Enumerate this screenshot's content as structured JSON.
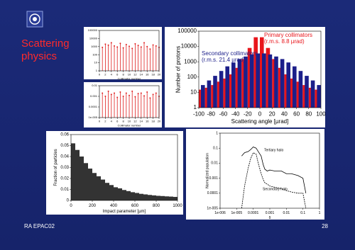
{
  "slide": {
    "heading_lines": [
      "Scattering",
      "physics"
    ],
    "footer": "RA EPAC02",
    "page_number": "28"
  },
  "chart_data": [
    {
      "type": "stem",
      "xlabel": "Collimator number",
      "color": "#e02020",
      "x": [
        1,
        2,
        3,
        4,
        5,
        6,
        7,
        8,
        9,
        10,
        11,
        12,
        13,
        14,
        15,
        16,
        17,
        18,
        19,
        20
      ],
      "values": [
        800,
        2000,
        1500,
        3000,
        1200,
        900,
        2500,
        700,
        1800,
        1100,
        600,
        2200,
        1400,
        900,
        3000,
        1000,
        500,
        1600,
        1200,
        800
      ],
      "xlim": [
        0,
        20
      ],
      "xticks": [
        0,
        2,
        4,
        6,
        8,
        10,
        12,
        14,
        16,
        18,
        20
      ],
      "ylim": [
        1,
        100000
      ],
      "yticks": [
        1,
        10,
        100,
        1000,
        10000,
        100000
      ],
      "ylog": true
    },
    {
      "type": "stem",
      "xlabel": "Collimator number",
      "color": "#e02020",
      "x": [
        1,
        2,
        3,
        4,
        5,
        6,
        7,
        8,
        9,
        10,
        11,
        12,
        13,
        14,
        15,
        16,
        17,
        18,
        19,
        20
      ],
      "values": [
        0.002,
        0.001,
        0.003,
        0.0015,
        0.002,
        0.0008,
        0.0025,
        0.001,
        0.002,
        0.0012,
        0.003,
        0.0009,
        0.0018,
        0.002,
        0.0011,
        0.0025,
        0.0007,
        0.0015,
        0.002,
        0.001
      ],
      "xlim": [
        0,
        20
      ],
      "xticks": [
        0,
        2,
        4,
        6,
        8,
        10,
        12,
        14,
        16,
        18,
        20
      ],
      "ylim": [
        1e-05,
        0.01
      ],
      "yticks": [
        {
          "value": 1e-05,
          "label": "1e-005"
        },
        0.0001,
        0.001,
        0.01
      ],
      "ylog": true
    },
    {
      "type": "histogram",
      "xlabel": "Scattering angle [µrad]",
      "ylabel": "Number of protons",
      "bins": [
        -100,
        -90,
        -80,
        -70,
        -60,
        -50,
        -40,
        -30,
        -20,
        -10,
        0,
        10,
        20,
        30,
        40,
        50,
        60,
        70,
        80,
        90,
        100
      ],
      "series": [
        {
          "name": "Primary collimators",
          "note": "(r.m.s. 8.8 µrad)",
          "color": "#e8151b",
          "values": [
            15,
            20,
            30,
            50,
            80,
            150,
            400,
            1500,
            8000,
            40000,
            40000,
            8000,
            1500,
            400,
            150,
            80,
            50,
            30,
            20,
            15
          ]
        },
        {
          "name": "Secondary collimators",
          "note": "(r.m.s. 21.4 µrad)",
          "color": "#1c1f8a",
          "values": [
            30,
            60,
            120,
            250,
            500,
            900,
            1500,
            2200,
            3000,
            3500,
            3500,
            3000,
            2200,
            1500,
            900,
            500,
            250,
            120,
            60,
            30
          ]
        }
      ],
      "xlim": [
        -100,
        100
      ],
      "xticks": [
        -100,
        -80,
        -60,
        -40,
        -20,
        0,
        20,
        40,
        60,
        80,
        100
      ],
      "ylim": [
        1,
        100000
      ],
      "yticks": [
        1,
        10,
        100,
        1000,
        10000,
        100000
      ],
      "ylog": true
    },
    {
      "type": "histogram",
      "xlabel": "Impact parameter [µm]",
      "ylabel": "Fraction of particles",
      "bins": [
        0,
        40,
        80,
        120,
        160,
        200,
        240,
        280,
        320,
        360,
        400,
        440,
        480,
        520,
        560,
        600,
        640,
        680,
        720,
        760,
        800,
        840,
        880,
        920,
        960,
        1000
      ],
      "series": [
        {
          "color": "#333333",
          "values": [
            0.052,
            0.046,
            0.04,
            0.034,
            0.029,
            0.025,
            0.022,
            0.019,
            0.016,
            0.014,
            0.012,
            0.011,
            0.0095,
            0.0085,
            0.0075,
            0.0068,
            0.006,
            0.0055,
            0.005,
            0.0046,
            0.0042,
            0.004,
            0.0037,
            0.0035,
            0.0032
          ]
        }
      ],
      "xlim": [
        0,
        1000
      ],
      "xticks": [
        0,
        200,
        400,
        600,
        800,
        1000
      ],
      "ylim": [
        0,
        0.06
      ],
      "yticks": [
        0,
        0.01,
        0.02,
        0.03,
        0.04,
        0.05,
        0.06
      ]
    },
    {
      "type": "line",
      "xlabel": "δ",
      "ylabel": "Normalized population",
      "x": [
        2e-05,
        3e-05,
        5e-05,
        7e-05,
        0.0001,
        0.00015,
        0.0002,
        0.0003,
        0.0004,
        0.0005,
        0.0007,
        0.001,
        0.002,
        0.005,
        0.01,
        0.02,
        0.05,
        0.1,
        0.15
      ],
      "series": [
        {
          "name": "Tertiary halo",
          "color": "#000000",
          "values": [
            0.03,
            0.05,
            0.06,
            0.08,
            0.12,
            0.1,
            0.06,
            0.03,
            0.008,
            0.004,
            0.003,
            0.0035,
            0.003,
            0.003,
            0.002,
            0.002,
            0.0015,
            0.001,
            0.0001
          ]
        },
        {
          "name": "Secondary halo",
          "color": "#000000",
          "values": [
            1e-05,
            0.0003,
            0.005,
            0.02,
            0.05,
            0.04,
            0.01,
            0.002,
            0.0008,
            0.0005,
            0.0004,
            0.0003,
            0.00025,
            0.0002,
            0.00015,
            0.00012,
            0.0001,
            0.0001,
            1e-05
          ]
        }
      ],
      "xlim": [
        1e-06,
        1
      ],
      "xticks": [
        {
          "value": 1e-06,
          "label": "1e-006"
        },
        {
          "value": 1e-05,
          "label": "1e-005"
        },
        0.0001,
        0.001,
        0.01,
        0.1,
        1
      ],
      "xlog": true,
      "ylim": [
        1e-05,
        1
      ],
      "yticks": [
        {
          "value": 1e-05,
          "label": "1e-005"
        },
        0.0001,
        0.001,
        0.01,
        0.1,
        1
      ],
      "ylog": true
    }
  ]
}
